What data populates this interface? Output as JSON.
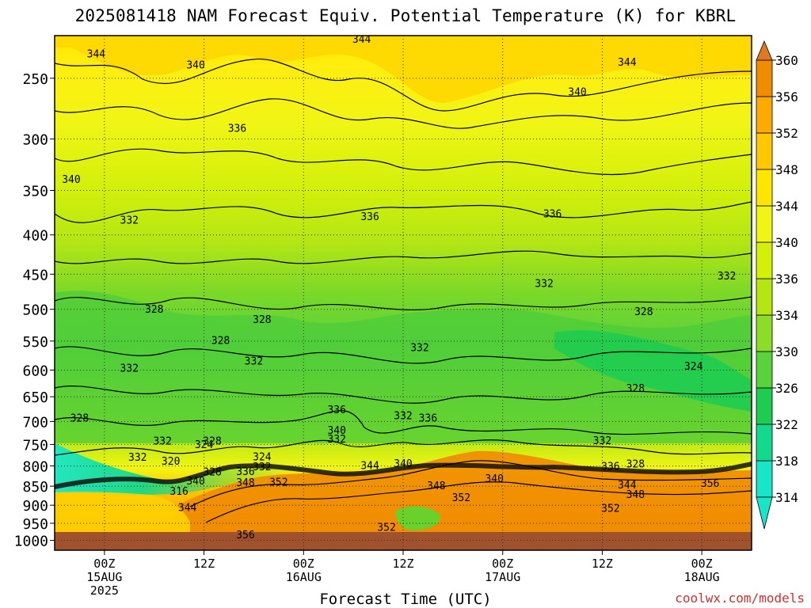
{
  "chart_data": {
    "type": "heatmap",
    "title": "2025081418 NAM Forecast Equiv. Potential Temperature (K) for KBRL",
    "xlabel": "Forecast Time (UTC)",
    "ylabel": "",
    "y_scale": "log",
    "y_reversed": true,
    "ylim": [
      220,
      1030
    ],
    "y_ticks": [
      250,
      300,
      350,
      400,
      450,
      500,
      550,
      600,
      650,
      700,
      750,
      800,
      850,
      900,
      950,
      1000
    ],
    "x_ticks": [
      {
        "hour": 6,
        "label": [
          "00Z",
          "15AUG",
          "2025"
        ]
      },
      {
        "hour": 18,
        "label": [
          "12Z"
        ]
      },
      {
        "hour": 30,
        "label": [
          "00Z",
          "16AUG"
        ]
      },
      {
        "hour": 42,
        "label": [
          "12Z"
        ]
      },
      {
        "hour": 54,
        "label": [
          "00Z",
          "17AUG"
        ]
      },
      {
        "hour": 66,
        "label": [
          "12Z"
        ]
      },
      {
        "hour": 78,
        "label": [
          "00Z",
          "18AUG"
        ]
      }
    ],
    "xlim": [
      0,
      84
    ],
    "colorbar": {
      "levels": [
        314,
        318,
        322,
        326,
        330,
        334,
        336,
        340,
        344,
        348,
        352,
        356,
        360
      ],
      "colors": [
        "#19e6c8",
        "#12d98c",
        "#1ecc50",
        "#5ad23c",
        "#8cdc28",
        "#b4e614",
        "#d2f00a",
        "#f0f514",
        "#ffe600",
        "#ffc800",
        "#ffaa00",
        "#f08c00"
      ]
    },
    "contour_labels": [
      {
        "t": 5,
        "p": 232,
        "v": "344"
      },
      {
        "t": 17,
        "p": 240,
        "v": "340"
      },
      {
        "t": 37,
        "p": 222,
        "v": "344"
      },
      {
        "t": 69,
        "p": 238,
        "v": "344"
      },
      {
        "t": 63,
        "p": 260,
        "v": "340"
      },
      {
        "t": 22,
        "p": 290,
        "v": "336"
      },
      {
        "t": 2,
        "p": 338,
        "v": "340"
      },
      {
        "t": 9,
        "p": 382,
        "v": "332"
      },
      {
        "t": 38,
        "p": 378,
        "v": "336"
      },
      {
        "t": 60,
        "p": 375,
        "v": "336"
      },
      {
        "t": 81,
        "p": 452,
        "v": "332"
      },
      {
        "t": 59,
        "p": 462,
        "v": "332"
      },
      {
        "t": 12,
        "p": 499,
        "v": "328"
      },
      {
        "t": 25,
        "p": 515,
        "v": "328"
      },
      {
        "t": 71,
        "p": 503,
        "v": "328"
      },
      {
        "t": 20,
        "p": 548,
        "v": "328"
      },
      {
        "t": 44,
        "p": 560,
        "v": "332"
      },
      {
        "t": 77,
        "p": 592,
        "v": "324"
      },
      {
        "t": 24,
        "p": 583,
        "v": "332"
      },
      {
        "t": 9,
        "p": 596,
        "v": "332"
      },
      {
        "t": 70,
        "p": 633,
        "v": "328"
      },
      {
        "t": 3,
        "p": 692,
        "v": "328"
      },
      {
        "t": 34,
        "p": 675,
        "v": "336"
      },
      {
        "t": 42,
        "p": 687,
        "v": "332"
      },
      {
        "t": 45,
        "p": 692,
        "v": "336"
      },
      {
        "t": 34,
        "p": 718,
        "v": "340"
      },
      {
        "t": 34,
        "p": 737,
        "v": "332"
      },
      {
        "t": 66,
        "p": 740,
        "v": "332"
      },
      {
        "t": 13,
        "p": 741,
        "v": "332"
      },
      {
        "t": 18,
        "p": 749,
        "v": "324"
      },
      {
        "t": 19,
        "p": 741,
        "v": "328"
      },
      {
        "t": 10,
        "p": 778,
        "v": "332"
      },
      {
        "t": 14,
        "p": 788,
        "v": "320"
      },
      {
        "t": 25,
        "p": 777,
        "v": "324"
      },
      {
        "t": 19,
        "p": 813,
        "v": "328"
      },
      {
        "t": 25,
        "p": 801,
        "v": "332"
      },
      {
        "t": 23,
        "p": 812,
        "v": "336"
      },
      {
        "t": 17,
        "p": 836,
        "v": "340"
      },
      {
        "t": 23,
        "p": 840,
        "v": "348"
      },
      {
        "t": 27,
        "p": 839,
        "v": "352"
      },
      {
        "t": 38,
        "p": 798,
        "v": "344"
      },
      {
        "t": 42,
        "p": 793,
        "v": "340"
      },
      {
        "t": 46,
        "p": 848,
        "v": "348"
      },
      {
        "t": 53,
        "p": 830,
        "v": "340"
      },
      {
        "t": 67,
        "p": 800,
        "v": "336"
      },
      {
        "t": 70,
        "p": 794,
        "v": "328"
      },
      {
        "t": 69,
        "p": 846,
        "v": "344"
      },
      {
        "t": 70,
        "p": 870,
        "v": "348"
      },
      {
        "t": 79,
        "p": 842,
        "v": "356"
      },
      {
        "t": 49,
        "p": 878,
        "v": "352"
      },
      {
        "t": 67,
        "p": 907,
        "v": "352"
      },
      {
        "t": 15,
        "p": 862,
        "v": "316"
      },
      {
        "t": 16,
        "p": 905,
        "v": "344"
      },
      {
        "t": 40,
        "p": 960,
        "v": "352"
      },
      {
        "t": 23,
        "p": 982,
        "v": "356"
      }
    ]
  },
  "footer": {
    "credit": "coolwx.com/models"
  }
}
